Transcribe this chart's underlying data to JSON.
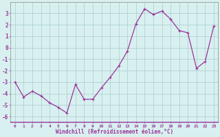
{
  "x": [
    0,
    1,
    2,
    3,
    4,
    5,
    6,
    7,
    8,
    9,
    10,
    11,
    12,
    13,
    14,
    15,
    16,
    17,
    18,
    19,
    20,
    21,
    22,
    23
  ],
  "y": [
    -3.0,
    -4.3,
    -3.8,
    -4.2,
    -4.8,
    -5.2,
    -5.7,
    -3.2,
    -4.5,
    -4.5,
    -3.5,
    -2.6,
    -1.6,
    -0.3,
    2.1,
    3.4,
    2.9,
    3.2,
    2.5,
    1.5,
    1.3,
    -1.8,
    -1.2,
    1.9
  ],
  "line_color": "#993399",
  "marker": "+",
  "markersize": 3,
  "linewidth": 0.9,
  "bg_color": "#d8f0f0",
  "grid_color": "#aacccc",
  "xlabel": "Windchill (Refroidissement éolien,°C)",
  "ylim": [
    -6.5,
    4.0
  ],
  "xlim": [
    -0.5,
    23.5
  ],
  "yticks": [
    -6,
    -5,
    -4,
    -3,
    -2,
    -1,
    0,
    1,
    2,
    3
  ],
  "xtick_labels": [
    "0",
    "1",
    "2",
    "3",
    "4",
    "5",
    "6",
    "7",
    "8",
    "9",
    "10",
    "11",
    "12",
    "13",
    "14",
    "15",
    "16",
    "17",
    "18",
    "19",
    "20",
    "21",
    "22",
    "23"
  ],
  "tick_color": "#993399",
  "label_color": "#993399"
}
